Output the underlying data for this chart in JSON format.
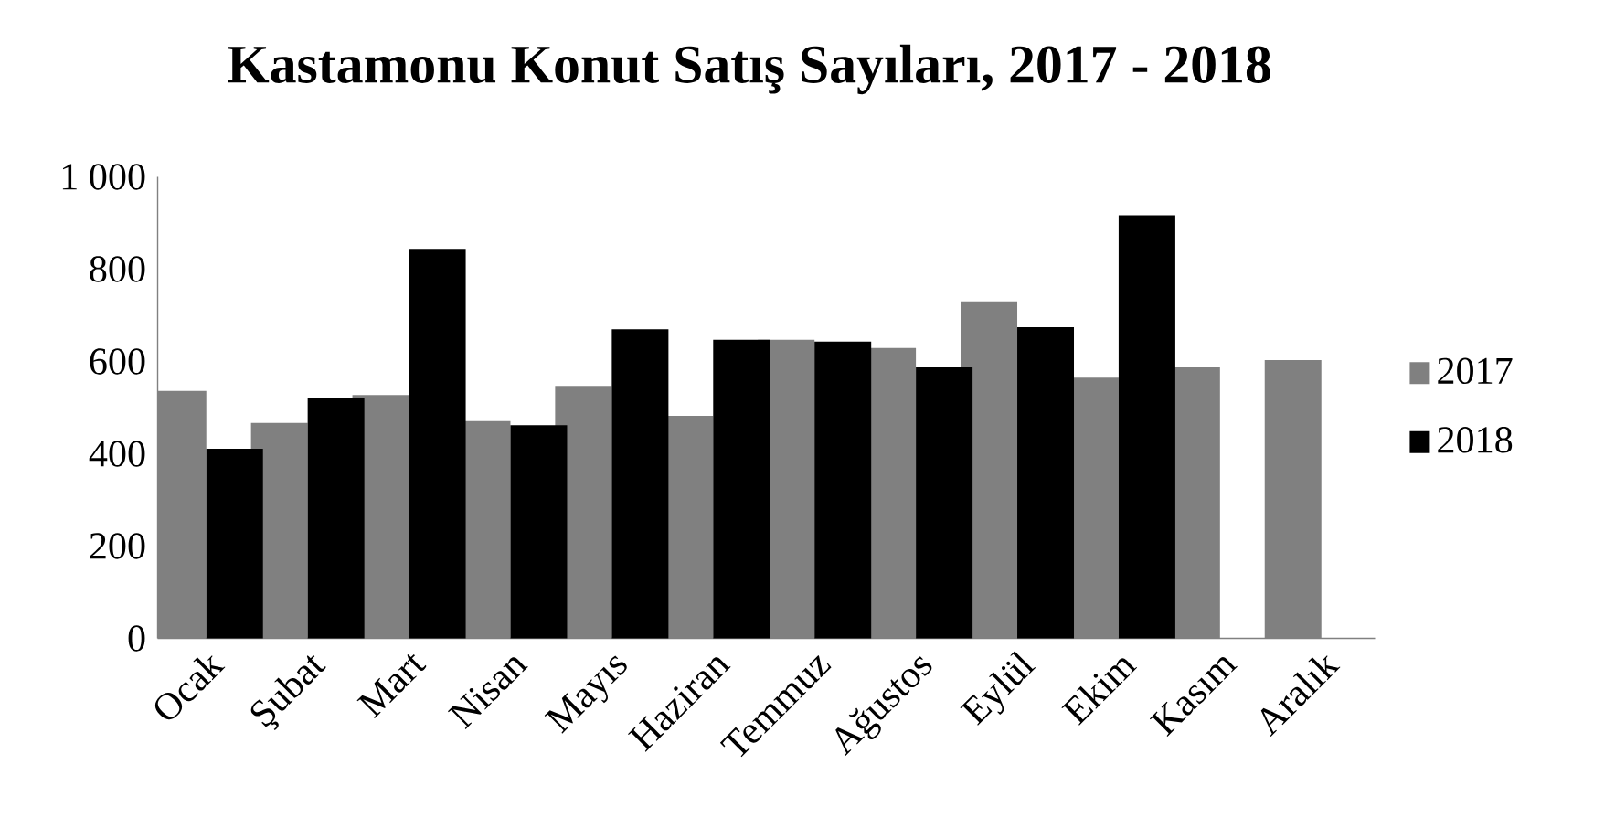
{
  "chart_data": {
    "type": "bar",
    "title": "Kastamonu Konut Satış Sayıları, 2017 - 2018",
    "categories": [
      "Ocak",
      "Şubat",
      "Mart",
      "Nisan",
      "Mayıs",
      "Haziran",
      "Temmuz",
      "Ağustos",
      "Eylül",
      "Ekim",
      "Kasım",
      "Aralık"
    ],
    "series": [
      {
        "name": "2017",
        "color": "#808080",
        "values": [
          536,
          467,
          527,
          471,
          547,
          482,
          647,
          629,
          730,
          565,
          587,
          603
        ]
      },
      {
        "name": "2018",
        "color": "#000000",
        "values": [
          411,
          520,
          842,
          462,
          670,
          647,
          643,
          587,
          674,
          917,
          null,
          null
        ]
      }
    ],
    "ylim": [
      0,
      1000
    ],
    "yticks": [
      0,
      200,
      400,
      600,
      800,
      {
        "value": 1000,
        "label": "1 000"
      }
    ],
    "legend": "right"
  }
}
